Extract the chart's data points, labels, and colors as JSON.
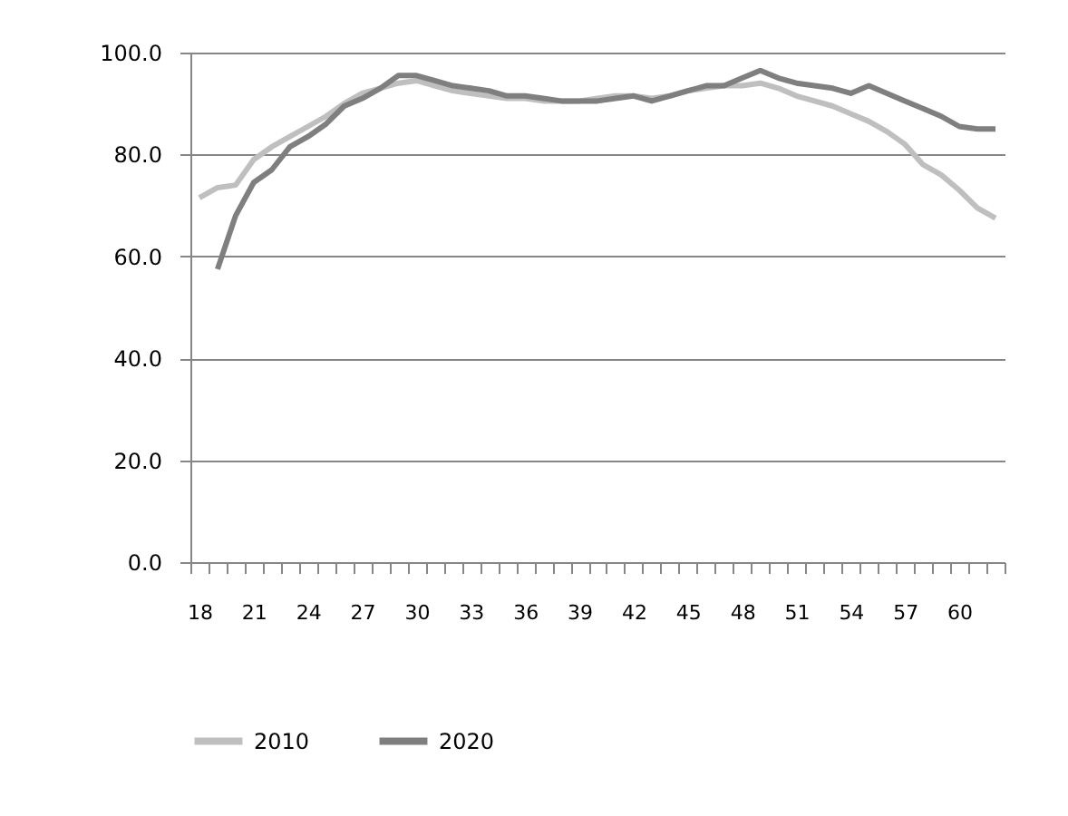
{
  "chart_data": {
    "type": "line",
    "categories": [
      "18",
      null,
      null,
      "21",
      null,
      null,
      "24",
      null,
      null,
      "27",
      null,
      null,
      "30",
      null,
      null,
      "33",
      null,
      null,
      "36",
      null,
      null,
      "39",
      null,
      null,
      "42",
      null,
      null,
      "45",
      null,
      null,
      "48",
      null,
      null,
      "51",
      null,
      null,
      "54",
      null,
      null,
      "57",
      null,
      null,
      "60",
      null,
      null
    ],
    "series": [
      {
        "name": "2010",
        "color": "#bfbfbf",
        "values": [
          71.5,
          73.5,
          74,
          79,
          81.5,
          83.5,
          85.5,
          87.5,
          90,
          92,
          93,
          94,
          94.5,
          93.5,
          92.5,
          92,
          91.5,
          91,
          91,
          90.5,
          90.5,
          90.5,
          91,
          91.5,
          91.5,
          91,
          91.5,
          92.5,
          93,
          93.5,
          93.5,
          94,
          93,
          91.5,
          90.5,
          89.5,
          88,
          86.5,
          84.5,
          82,
          78,
          76,
          73,
          69.5,
          67.5
        ]
      },
      {
        "name": "2020",
        "color": "#7f7f7f",
        "values": [
          null,
          57.5,
          68,
          74.5,
          77,
          81.5,
          83.5,
          86,
          89.5,
          91,
          93,
          95.5,
          95.5,
          94.5,
          93.5,
          93,
          92.5,
          91.5,
          91.5,
          91,
          90.5,
          90.5,
          90.5,
          91,
          91.5,
          90.5,
          91.5,
          92.5,
          93.5,
          93.5,
          95,
          96.5,
          95,
          94,
          93.5,
          93,
          92,
          93.5,
          92,
          90.5,
          89,
          87.5,
          85.5,
          85,
          85
        ]
      }
    ],
    "ylim": [
      0,
      100
    ],
    "yticks": [
      {
        "value": 0,
        "label": "0.0"
      },
      {
        "value": 20,
        "label": "20.0"
      },
      {
        "value": 40,
        "label": "40.0"
      },
      {
        "value": 60,
        "label": "60.0"
      },
      {
        "value": 80,
        "label": "80.0"
      },
      {
        "value": 100,
        "label": "100.0"
      }
    ],
    "grid": "y",
    "legend": "bottom",
    "marker": "none",
    "line_style": "solid"
  }
}
